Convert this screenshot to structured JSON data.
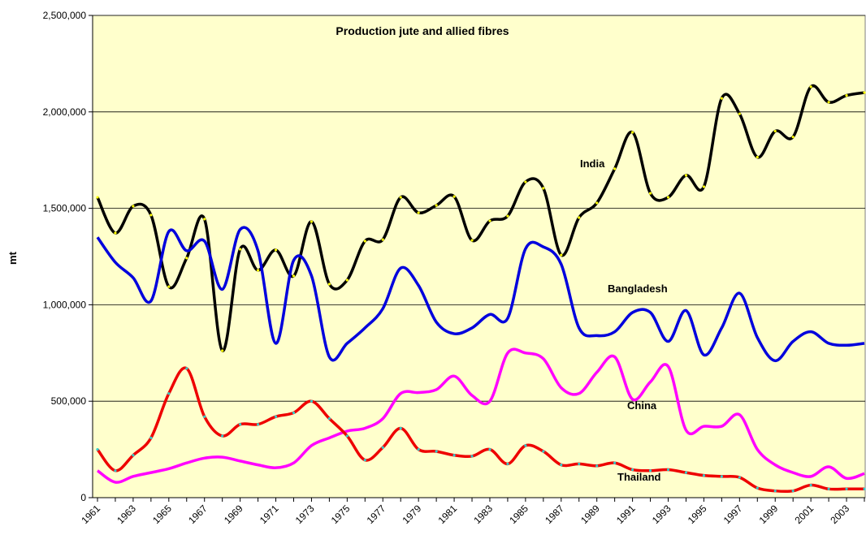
{
  "chart_data": {
    "type": "line",
    "title": "Production jute and allied fibres",
    "y_label": "mt",
    "categories": [
      "1961",
      null,
      "1963",
      null,
      "1965",
      null,
      "1967",
      null,
      "1969",
      null,
      "1971",
      null,
      "1973",
      null,
      "1975",
      null,
      "1977",
      null,
      "1979",
      null,
      "1981",
      null,
      "1983",
      null,
      "1985",
      null,
      "1987",
      null,
      "1989",
      null,
      "1991",
      null,
      "1993",
      null,
      "1995",
      null,
      "1997",
      null,
      "1999",
      null,
      "2001",
      null,
      "2003",
      null
    ],
    "ylim": [
      0,
      2500000
    ],
    "yticks": [
      0,
      {
        "value": 500000,
        "label": "500,000"
      },
      {
        "value": 1000000,
        "label": "1,000,000"
      },
      {
        "value": 1500000,
        "label": "1,500,000"
      },
      {
        "value": 2000000,
        "label": "2,000,000"
      },
      {
        "value": 2500000,
        "label": "2,500,000"
      }
    ],
    "grid": true,
    "background": "#ffffcc",
    "series": [
      {
        "name": "India",
        "color": "#000000",
        "marker_color": "#ffff00",
        "values": [
          1557000,
          1372000,
          1511000,
          1465000,
          1094000,
          1242000,
          1444000,
          762000,
          1288000,
          1179000,
          1284000,
          1149000,
          1431000,
          1107000,
          1128000,
          1330000,
          1338000,
          1557000,
          1477000,
          1515000,
          1561000,
          1334000,
          1435000,
          1460000,
          1637000,
          1604000,
          1258000,
          1452000,
          1528000,
          1705000,
          1894000,
          1578000,
          1557000,
          1671000,
          1612000,
          2070000,
          1990000,
          1765000,
          1900000,
          1870000,
          2130000,
          2050000,
          2085000,
          2100000
        ]
      },
      {
        "name": "Bangladesh",
        "color": "#0000dd",
        "values": [
          1350000,
          1220000,
          1140000,
          1020000,
          1380000,
          1280000,
          1330000,
          1080000,
          1390000,
          1280000,
          800000,
          1230000,
          1150000,
          730000,
          800000,
          880000,
          980000,
          1190000,
          1100000,
          910000,
          850000,
          880000,
          950000,
          930000,
          1290000,
          1300000,
          1210000,
          880000,
          840000,
          860000,
          960000,
          960000,
          810000,
          970000,
          740000,
          880000,
          1060000,
          830000,
          710000,
          810000,
          860000,
          800000,
          790000,
          800000
        ]
      },
      {
        "name": "China",
        "color": "#ff00ff",
        "values": [
          140000,
          80000,
          110000,
          130000,
          150000,
          180000,
          205000,
          210000,
          190000,
          170000,
          155000,
          180000,
          270000,
          310000,
          345000,
          360000,
          410000,
          540000,
          545000,
          560000,
          630000,
          530000,
          500000,
          750000,
          750000,
          720000,
          570000,
          540000,
          650000,
          730000,
          510000,
          600000,
          680000,
          350000,
          370000,
          370000,
          430000,
          250000,
          170000,
          130000,
          110000,
          160000,
          100000,
          125000
        ]
      },
      {
        "name": "Thailand",
        "color": "#ee0000",
        "marker_color": "#33cccc",
        "values": [
          250000,
          140000,
          220000,
          310000,
          540000,
          670000,
          420000,
          320000,
          380000,
          380000,
          420000,
          440000,
          500000,
          410000,
          320000,
          195000,
          260000,
          360000,
          250000,
          240000,
          220000,
          215000,
          250000,
          175000,
          270000,
          240000,
          170000,
          175000,
          165000,
          180000,
          145000,
          140000,
          145000,
          130000,
          115000,
          110000,
          105000,
          50000,
          35000,
          35000,
          65000,
          45000,
          45000,
          45000
        ]
      }
    ]
  }
}
